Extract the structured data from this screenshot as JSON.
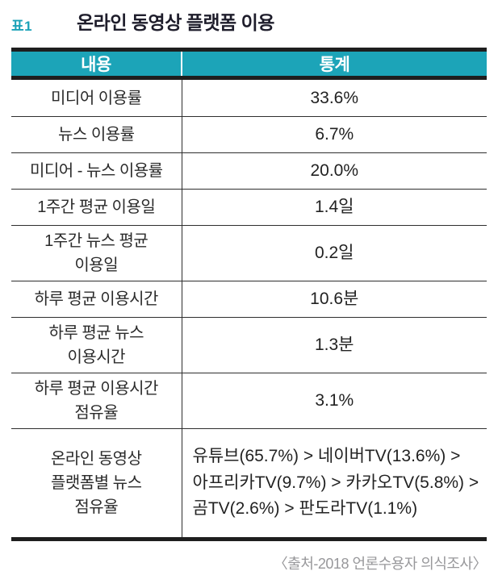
{
  "colors": {
    "accent_teal": "#1ca4b8",
    "title_dark": "#1e1d2b",
    "rule_dark": "#1e1e1e",
    "source_gray": "#98989b"
  },
  "caption": {
    "tag": "표1",
    "title": "온라인 동영상 플랫폼 이용"
  },
  "table": {
    "header": {
      "content": "내용",
      "stat": "통계"
    },
    "rows": [
      {
        "label": "미디어 이용률",
        "value": "33.6%"
      },
      {
        "label": "뉴스 이용률",
        "value": "6.7%"
      },
      {
        "label": "미디어 - 뉴스 이용률",
        "value": "20.0%"
      },
      {
        "label": "1주간 평균 이용일",
        "value": "1.4일"
      },
      {
        "label": "1주간 뉴스 평균\n이용일",
        "value": "0.2일"
      },
      {
        "label": "하루 평균 이용시간",
        "value": "10.6분"
      },
      {
        "label": "하루 평균 뉴스\n이용시간",
        "value": "1.3분"
      },
      {
        "label": "하루 평균 이용시간\n점유율",
        "value": "3.1%"
      },
      {
        "label": "온라인 동영상\n플랫폼별 뉴스\n점유율",
        "value": "유튜브(65.7%) > 네이버TV(13.6%) >\n아프리카TV(9.7%) > 카카오TV(5.8%) >\n곰TV(2.6%) > 판도라TV(1.1%)"
      }
    ]
  },
  "source": "〈출처-2018 언론수용자 의식조사〉"
}
